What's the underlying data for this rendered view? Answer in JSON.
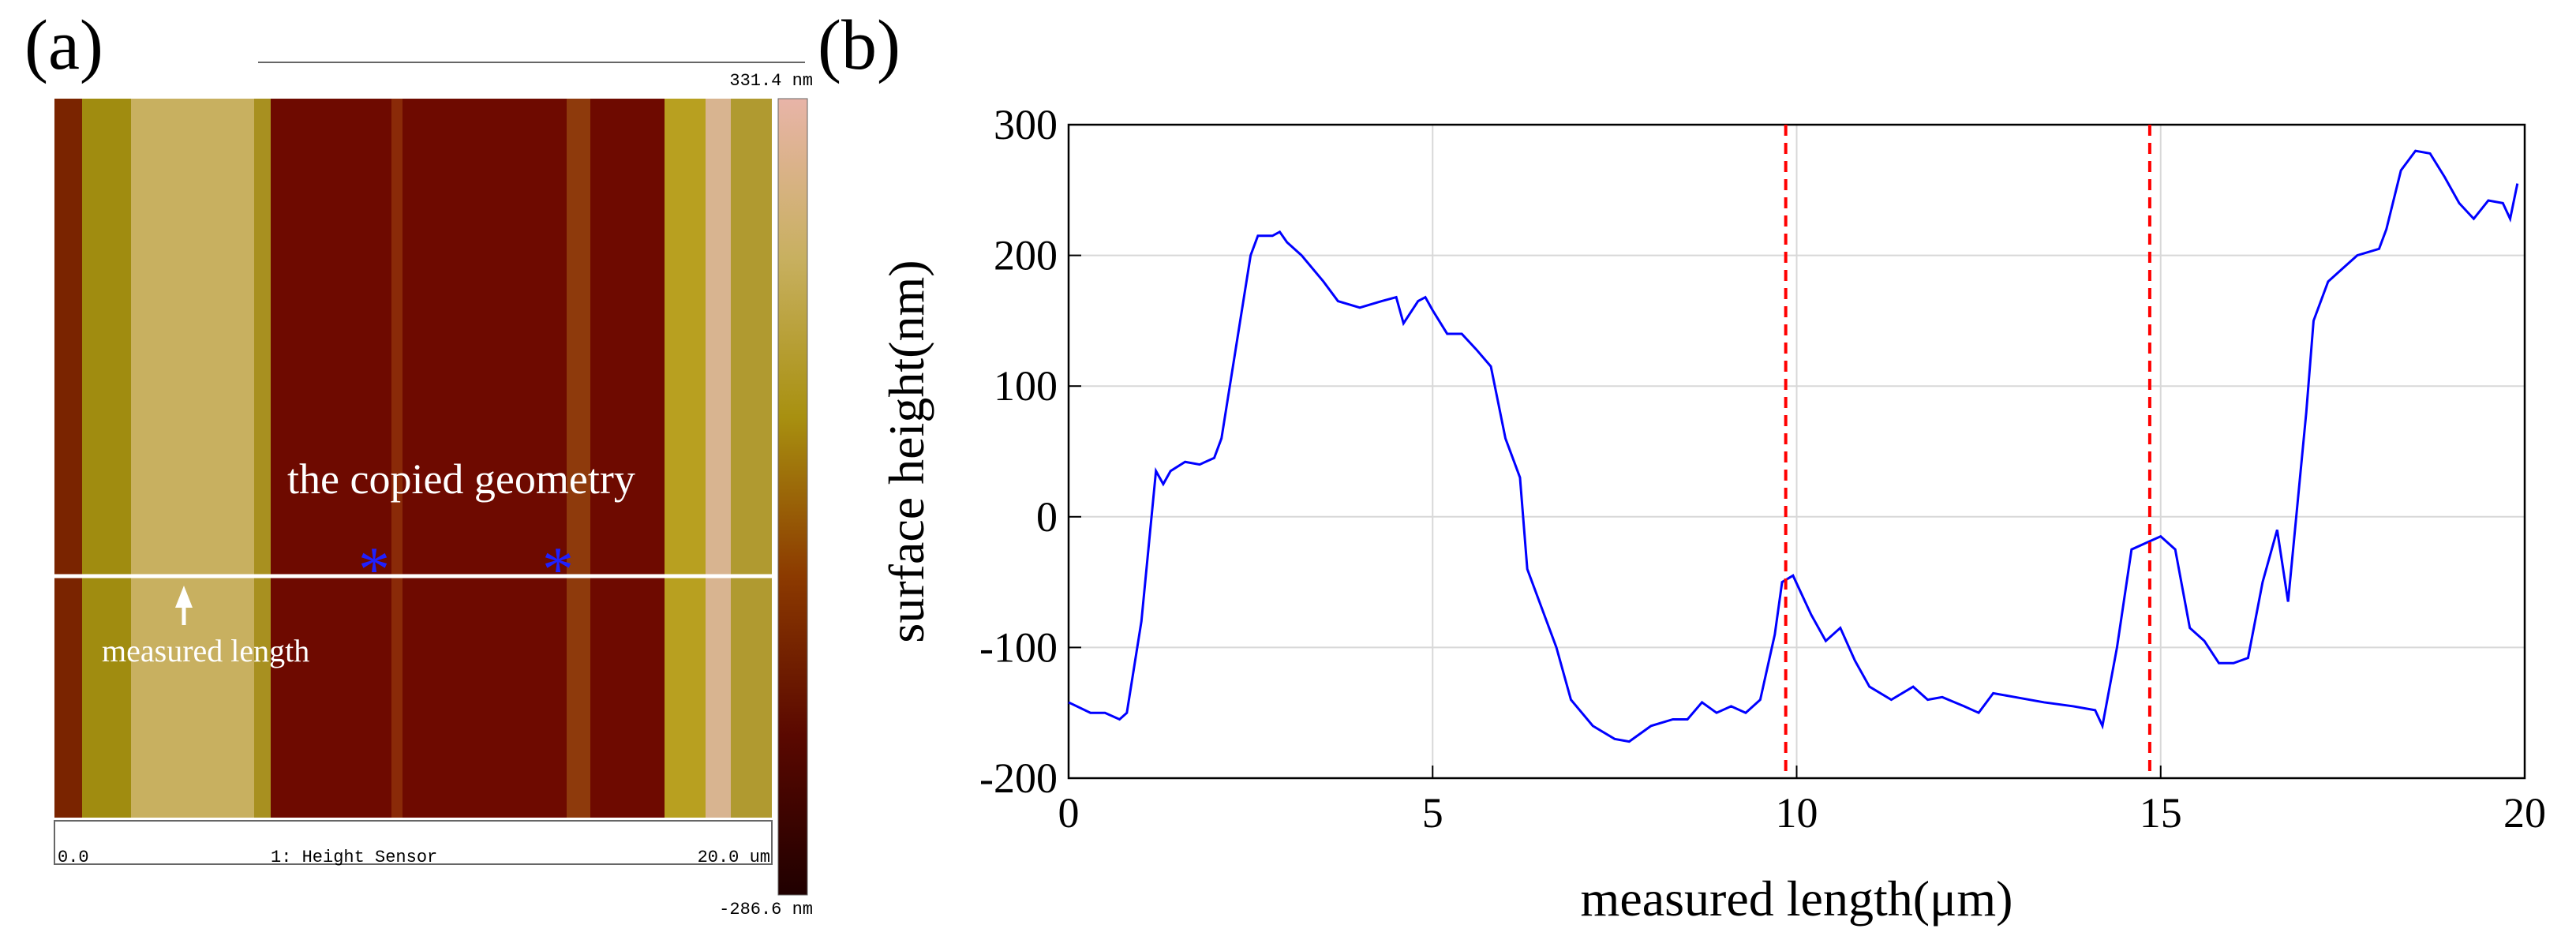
{
  "panel_labels": [
    "(a)",
    "(b)"
  ],
  "panel_a": {
    "scale_max": "331.4 nm",
    "scale_min": "-286.6 nm",
    "x_start": "0.0",
    "channel": "1: Height Sensor",
    "x_end": "20.0 um",
    "annotation": "the copied geometry",
    "arrow_label": "measured length"
  },
  "chart_data": {
    "type": "line",
    "xlabel": "measured length(μm)",
    "ylabel": "surface height(nm)",
    "xlim": [
      0,
      20
    ],
    "ylim": [
      -200,
      300
    ],
    "xticks": [
      0,
      5,
      10,
      15,
      20
    ],
    "yticks": [
      -200,
      -100,
      0,
      100,
      200,
      300
    ],
    "grid": true,
    "x": [
      0,
      0.3,
      0.5,
      0.7,
      0.8,
      1.0,
      1.2,
      1.3,
      1.4,
      1.6,
      1.8,
      2.0,
      2.1,
      2.3,
      2.5,
      2.6,
      2.8,
      2.9,
      3.0,
      3.2,
      3.5,
      3.7,
      4.0,
      4.3,
      4.5,
      4.6,
      4.8,
      4.9,
      5.0,
      5.2,
      5.4,
      5.6,
      5.8,
      6.0,
      6.2,
      6.3,
      6.5,
      6.7,
      6.9,
      7.2,
      7.5,
      7.7,
      8.0,
      8.3,
      8.5,
      8.7,
      8.9,
      9.1,
      9.3,
      9.5,
      9.7,
      9.8,
      9.95,
      10.2,
      10.4,
      10.6,
      10.8,
      11.0,
      11.3,
      11.6,
      11.8,
      12.0,
      12.3,
      12.5,
      12.7,
      13.0,
      13.4,
      13.8,
      14.1,
      14.2,
      14.4,
      14.6,
      14.8,
      15.0,
      15.2,
      15.4,
      15.6,
      15.8,
      16.0,
      16.2,
      16.4,
      16.6,
      16.75,
      17.0,
      17.1,
      17.3,
      17.5,
      17.7,
      18.0,
      18.1,
      18.3,
      18.5,
      18.7,
      18.9,
      19.1,
      19.3,
      19.5,
      19.7,
      19.8,
      19.9
    ],
    "series": [
      {
        "color": "#0000ff",
        "values": [
          -142,
          -150,
          -150,
          -155,
          -150,
          -80,
          35,
          25,
          35,
          42,
          40,
          45,
          60,
          130,
          200,
          215,
          215,
          218,
          210,
          200,
          180,
          165,
          160,
          165,
          168,
          148,
          165,
          168,
          158,
          140,
          140,
          128,
          115,
          60,
          30,
          -40,
          -70,
          -100,
          -140,
          -160,
          -170,
          -172,
          -160,
          -155,
          -155,
          -142,
          -150,
          -145,
          -150,
          -140,
          -90,
          -50,
          -45,
          -75,
          -95,
          -85,
          -110,
          -130,
          -140,
          -130,
          -140,
          -138,
          -145,
          -150,
          -135,
          -138,
          -142,
          -145,
          -148,
          -160,
          -100,
          -25,
          -20,
          -15,
          -25,
          -85,
          -95,
          -112,
          -112,
          -108,
          -50,
          -10,
          -65,
          80,
          150,
          180,
          190,
          200,
          205,
          220,
          265,
          280,
          278,
          260,
          240,
          228,
          242,
          240,
          228,
          255
        ]
      }
    ],
    "vlines": [
      9.85,
      14.85
    ],
    "vline_color": "#ff0000"
  }
}
